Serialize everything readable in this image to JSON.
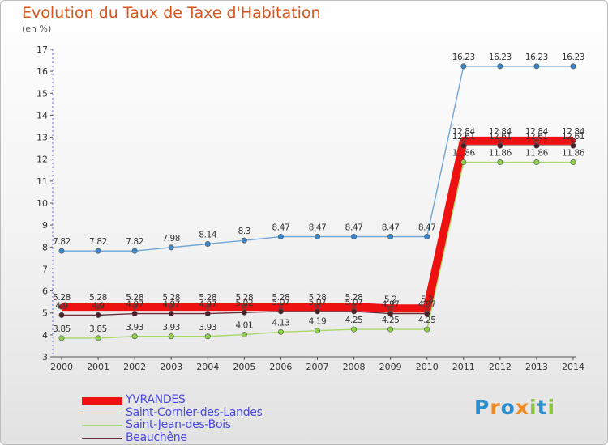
{
  "chart_data": {
    "type": "line",
    "title": "Evolution du Taux de Taxe d'Habitation",
    "unit_label": "(en %)",
    "x": [
      2000,
      2001,
      2002,
      2003,
      2004,
      2005,
      2006,
      2007,
      2008,
      2009,
      2010,
      2011,
      2012,
      2013,
      2014
    ],
    "ylim": [
      3,
      17
    ],
    "yticks": [
      3,
      4,
      5,
      6,
      7,
      8,
      9,
      10,
      11,
      12,
      13,
      14,
      15,
      16,
      17
    ],
    "grid": false,
    "legend_position": "bottom-left",
    "series": [
      {
        "name": "Saint-Jean-des-Bois",
        "color": "#a6d86a",
        "marker": "#8cd04c",
        "values": [
          3.85,
          3.85,
          3.93,
          3.93,
          3.93,
          4.01,
          4.13,
          4.19,
          4.25,
          4.25,
          4.25,
          11.86,
          11.86,
          11.86,
          11.86
        ],
        "labels": [
          "3.85",
          "3.85",
          "3.93",
          "3.93",
          "3.93",
          "4.01",
          "4.13",
          "4.19",
          "4.25",
          "4.25",
          "4.25",
          "11.86",
          "11.86",
          "11.86",
          "11.86"
        ]
      },
      {
        "name": "Beauchêne",
        "color": "#6a2e3a",
        "marker": "#4b1e28",
        "values": [
          4.9,
          4.9,
          4.97,
          4.97,
          4.97,
          5.02,
          5.07,
          5.07,
          5.07,
          4.97,
          4.97,
          12.61,
          12.61,
          12.61,
          12.61
        ],
        "labels": [
          "4.9",
          "4.9",
          "4.97",
          "4.97",
          "4.97",
          "5.02",
          "5.07",
          "5.07",
          "5.07",
          "4.97",
          "4.97",
          "12.61",
          "12.61",
          "12.61",
          "12.61"
        ]
      },
      {
        "name": "YVRANDES",
        "color": "#ee1111",
        "marker": "#bb1a1a",
        "values": [
          5.28,
          5.28,
          5.28,
          5.28,
          5.28,
          5.28,
          5.28,
          5.28,
          5.28,
          5.2,
          5.2,
          12.84,
          12.84,
          12.84,
          12.84
        ],
        "labels": [
          "5.28",
          "5.28",
          "5.28",
          "5.28",
          "5.28",
          "5.28",
          "5.28",
          "5.28",
          "5.28",
          "5.2",
          "5.2",
          "12.84",
          "12.84",
          "12.84",
          "12.84"
        ]
      },
      {
        "name": "Saint-Cornier-des-Landes",
        "color": "#6fa6d6",
        "marker": "#3b86c8",
        "values": [
          7.82,
          7.82,
          7.82,
          7.98,
          8.14,
          8.3,
          8.47,
          8.47,
          8.47,
          8.47,
          8.47,
          16.23,
          16.23,
          16.23,
          16.23
        ],
        "labels": [
          "7.82",
          "7.82",
          "7.82",
          "7.98",
          "8.14",
          "8.3",
          "8.47",
          "8.47",
          "8.47",
          "8.47",
          "8.47",
          "16.23",
          "16.23",
          "16.23",
          "16.23"
        ]
      }
    ]
  },
  "legend": {
    "items": [
      {
        "name": "YVRANDES",
        "color": "#ee1111"
      },
      {
        "name": "Saint-Cornier-des-Landes",
        "color": "#6fa6d6"
      },
      {
        "name": "Saint-Jean-des-Bois",
        "color": "#a6d86a"
      },
      {
        "name": "Beauchêne",
        "color": "#6a2e3a"
      }
    ]
  },
  "brand": {
    "letters": [
      "P",
      "r",
      "o",
      "x",
      "i",
      "t",
      "i"
    ],
    "colors": [
      "#2a8fd0",
      "#f08a1e",
      "#2a8fd0",
      "#f08a1e",
      "#8cc63e",
      "#2a8fd0",
      "#8cc63e"
    ]
  }
}
